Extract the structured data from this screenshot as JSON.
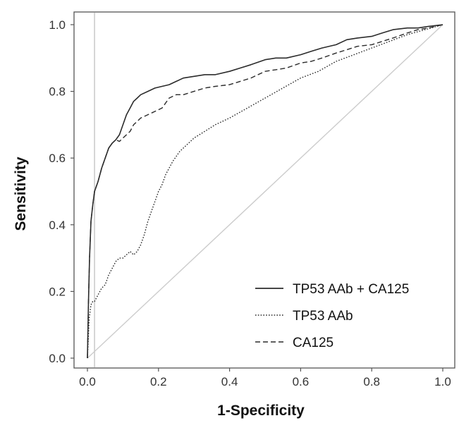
{
  "chart_data": {
    "type": "line",
    "title": "",
    "xlabel": "1-Specificity",
    "ylabel": "Sensitivity",
    "xlim": [
      0,
      1
    ],
    "ylim": [
      0,
      1
    ],
    "xticks": [
      "0.0",
      "0.2",
      "0.4",
      "0.6",
      "0.8",
      "1.0"
    ],
    "yticks": [
      "0.0",
      "0.2",
      "0.4",
      "0.6",
      "0.8",
      "1.0"
    ],
    "grid": false,
    "legend_position": "bottom-right",
    "reference_lines": [
      {
        "kind": "diagonal",
        "from": [
          0,
          0
        ],
        "to": [
          1,
          1
        ],
        "color": "#cccccc"
      },
      {
        "kind": "vertical",
        "x": 0.02,
        "color": "#cccccc"
      }
    ],
    "series": [
      {
        "name": "TP53 AAb + CA125",
        "style": "solid",
        "x": [
          0,
          0.003,
          0.006,
          0.01,
          0.015,
          0.02,
          0.03,
          0.04,
          0.05,
          0.06,
          0.07,
          0.08,
          0.09,
          0.1,
          0.11,
          0.12,
          0.13,
          0.14,
          0.15,
          0.17,
          0.19,
          0.21,
          0.23,
          0.25,
          0.27,
          0.3,
          0.33,
          0.36,
          0.4,
          0.43,
          0.46,
          0.5,
          0.53,
          0.56,
          0.6,
          0.63,
          0.66,
          0.7,
          0.73,
          0.76,
          0.8,
          0.83,
          0.86,
          0.9,
          0.93,
          0.96,
          1.0
        ],
        "y": [
          0,
          0.17,
          0.3,
          0.41,
          0.46,
          0.5,
          0.53,
          0.57,
          0.6,
          0.63,
          0.645,
          0.655,
          0.67,
          0.7,
          0.73,
          0.75,
          0.77,
          0.78,
          0.79,
          0.8,
          0.81,
          0.815,
          0.82,
          0.83,
          0.84,
          0.845,
          0.85,
          0.85,
          0.86,
          0.87,
          0.88,
          0.895,
          0.9,
          0.9,
          0.91,
          0.92,
          0.93,
          0.94,
          0.955,
          0.96,
          0.965,
          0.975,
          0.985,
          0.99,
          0.99,
          0.995,
          1.0
        ]
      },
      {
        "name": "TP53 AAb",
        "style": "dotted",
        "x": [
          0,
          0.005,
          0.01,
          0.015,
          0.02,
          0.03,
          0.04,
          0.05,
          0.06,
          0.07,
          0.08,
          0.09,
          0.1,
          0.11,
          0.12,
          0.13,
          0.14,
          0.15,
          0.16,
          0.17,
          0.18,
          0.19,
          0.2,
          0.21,
          0.22,
          0.23,
          0.24,
          0.26,
          0.28,
          0.3,
          0.33,
          0.36,
          0.4,
          0.45,
          0.5,
          0.55,
          0.6,
          0.65,
          0.7,
          0.75,
          0.8,
          0.85,
          0.9,
          0.95,
          1.0
        ],
        "y": [
          0,
          0.12,
          0.16,
          0.17,
          0.17,
          0.19,
          0.21,
          0.22,
          0.25,
          0.27,
          0.29,
          0.3,
          0.3,
          0.31,
          0.32,
          0.31,
          0.32,
          0.34,
          0.37,
          0.41,
          0.44,
          0.47,
          0.5,
          0.52,
          0.55,
          0.57,
          0.59,
          0.62,
          0.64,
          0.66,
          0.68,
          0.7,
          0.72,
          0.75,
          0.78,
          0.81,
          0.84,
          0.86,
          0.89,
          0.91,
          0.93,
          0.95,
          0.97,
          0.985,
          1.0
        ]
      },
      {
        "name": "CA125",
        "style": "dashed",
        "x": [
          0,
          0.003,
          0.006,
          0.01,
          0.015,
          0.02,
          0.03,
          0.04,
          0.05,
          0.06,
          0.07,
          0.08,
          0.09,
          0.1,
          0.11,
          0.12,
          0.13,
          0.14,
          0.15,
          0.17,
          0.19,
          0.21,
          0.23,
          0.25,
          0.27,
          0.3,
          0.33,
          0.36,
          0.4,
          0.43,
          0.46,
          0.5,
          0.53,
          0.56,
          0.6,
          0.63,
          0.66,
          0.7,
          0.73,
          0.76,
          0.8,
          0.83,
          0.86,
          0.9,
          0.93,
          0.96,
          1.0
        ],
        "y": [
          0,
          0.17,
          0.3,
          0.41,
          0.46,
          0.5,
          0.53,
          0.57,
          0.6,
          0.63,
          0.645,
          0.655,
          0.65,
          0.66,
          0.67,
          0.68,
          0.7,
          0.71,
          0.72,
          0.73,
          0.74,
          0.75,
          0.78,
          0.79,
          0.79,
          0.8,
          0.81,
          0.815,
          0.82,
          0.83,
          0.84,
          0.86,
          0.865,
          0.87,
          0.885,
          0.89,
          0.9,
          0.915,
          0.925,
          0.935,
          0.94,
          0.95,
          0.96,
          0.975,
          0.985,
          0.99,
          1.0
        ]
      }
    ]
  }
}
